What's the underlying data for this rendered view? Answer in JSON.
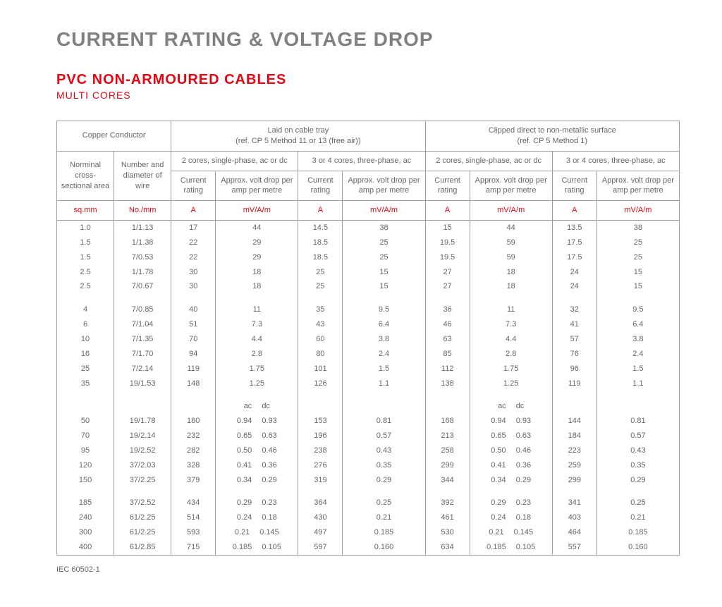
{
  "titles": {
    "main": "CURRENT RATING & VOLTAGE DROP",
    "sub": "PVC NON-ARMOURED CABLES",
    "subsub": "MULTI CORES"
  },
  "colors": {
    "accent": "#e30613",
    "text": "#666666",
    "title_gray": "#808080",
    "border": "#9e9e9e",
    "background": "#ffffff"
  },
  "headers": {
    "copper": "Copper Conductor",
    "tray": "Laid on cable tray",
    "tray_ref": "(ref. CP 5 Method 11 or 13 (free air))",
    "clipped": "Clipped direct to non-metallic surface",
    "clipped_ref": "(ref. CP 5 Method 1)",
    "nominal": "Norminal cross-sectional area",
    "number": "Number and diameter of wire",
    "two_core": "2 cores, single-phase, ac or dc",
    "three_core": "3 or 4 cores, three-phase, ac",
    "current": "Current rating",
    "voltdrop": "Approx. volt drop per amp per metre",
    "u_sqmm": "sq.mm",
    "u_nomm": "No./mm",
    "u_a": "A",
    "u_mv": "mV/A/m",
    "ac": "ac",
    "dc": "dc"
  },
  "table": {
    "type": "table",
    "font_size": 11,
    "rows_block1": [
      [
        "1.0",
        "1/1.13",
        "17",
        "44",
        "14.5",
        "38",
        "15",
        "44",
        "13.5",
        "38"
      ],
      [
        "1.5",
        "1/1.38",
        "22",
        "29",
        "18.5",
        "25",
        "19.5",
        "59",
        "17.5",
        "25"
      ],
      [
        "1.5",
        "7/0.53",
        "22",
        "29",
        "18.5",
        "25",
        "19.5",
        "59",
        "17.5",
        "25"
      ],
      [
        "2.5",
        "1/1.78",
        "30",
        "18",
        "25",
        "15",
        "27",
        "18",
        "24",
        "15"
      ],
      [
        "2.5",
        "7/0.67",
        "30",
        "18",
        "25",
        "15",
        "27",
        "18",
        "24",
        "15"
      ]
    ],
    "rows_block2": [
      [
        "4",
        "7/0.85",
        "40",
        "11",
        "35",
        "9.5",
        "36",
        "11",
        "32",
        "9.5"
      ],
      [
        "6",
        "7/1.04",
        "51",
        "7.3",
        "43",
        "6.4",
        "46",
        "7.3",
        "41",
        "6.4"
      ],
      [
        "10",
        "7/1.35",
        "70",
        "4.4",
        "60",
        "3.8",
        "63",
        "4.4",
        "57",
        "3.8"
      ],
      [
        "16",
        "7/1.70",
        "94",
        "2.8",
        "80",
        "2.4",
        "85",
        "2.8",
        "76",
        "2.4"
      ],
      [
        "25",
        "7/2.14",
        "119",
        "1.75",
        "101",
        "1.5",
        "112",
        "1.75",
        "96",
        "1.5"
      ],
      [
        "35",
        "19/1.53",
        "148",
        "1.25",
        "126",
        "1.1",
        "138",
        "1.25",
        "119",
        "1.1"
      ]
    ],
    "rows_block3": [
      [
        "50",
        "19/1.78",
        "180",
        [
          "0.94",
          "0.93"
        ],
        "153",
        "0.81",
        "168",
        [
          "0.94",
          "0.93"
        ],
        "144",
        "0.81"
      ],
      [
        "70",
        "19/2.14",
        "232",
        [
          "0.65",
          "0.63"
        ],
        "196",
        "0.57",
        "213",
        [
          "0.65",
          "0.63"
        ],
        "184",
        "0.57"
      ],
      [
        "95",
        "19/2.52",
        "282",
        [
          "0.50",
          "0.46"
        ],
        "238",
        "0.43",
        "258",
        [
          "0.50",
          "0.46"
        ],
        "223",
        "0.43"
      ],
      [
        "120",
        "37/2.03",
        "328",
        [
          "0.41",
          "0.36"
        ],
        "276",
        "0.35",
        "299",
        [
          "0.41",
          "0.36"
        ],
        "259",
        "0.35"
      ],
      [
        "150",
        "37/2.25",
        "379",
        [
          "0.34",
          "0.29"
        ],
        "319",
        "0.29",
        "344",
        [
          "0.34",
          "0.29"
        ],
        "299",
        "0.29"
      ]
    ],
    "rows_block4": [
      [
        "185",
        "37/2.52",
        "434",
        [
          "0.29",
          "0.23"
        ],
        "364",
        "0.25",
        "392",
        [
          "0.29",
          "0.23"
        ],
        "341",
        "0.25"
      ],
      [
        "240",
        "61/2.25",
        "514",
        [
          "0.24",
          "0.18"
        ],
        "430",
        "0.21",
        "461",
        [
          "0.24",
          "0.18"
        ],
        "403",
        "0.21"
      ],
      [
        "300",
        "61/2.25",
        "593",
        [
          "0.21",
          "0.145"
        ],
        "497",
        "0.185",
        "530",
        [
          "0.21",
          "0.145"
        ],
        "464",
        "0.185"
      ],
      [
        "400",
        "61/2.85",
        "715",
        [
          "0.185",
          "0.105"
        ],
        "597",
        "0.160",
        "634",
        [
          "0.185",
          "0.105"
        ],
        "557",
        "0.160"
      ]
    ]
  },
  "footnote": "IEC 60502-1"
}
